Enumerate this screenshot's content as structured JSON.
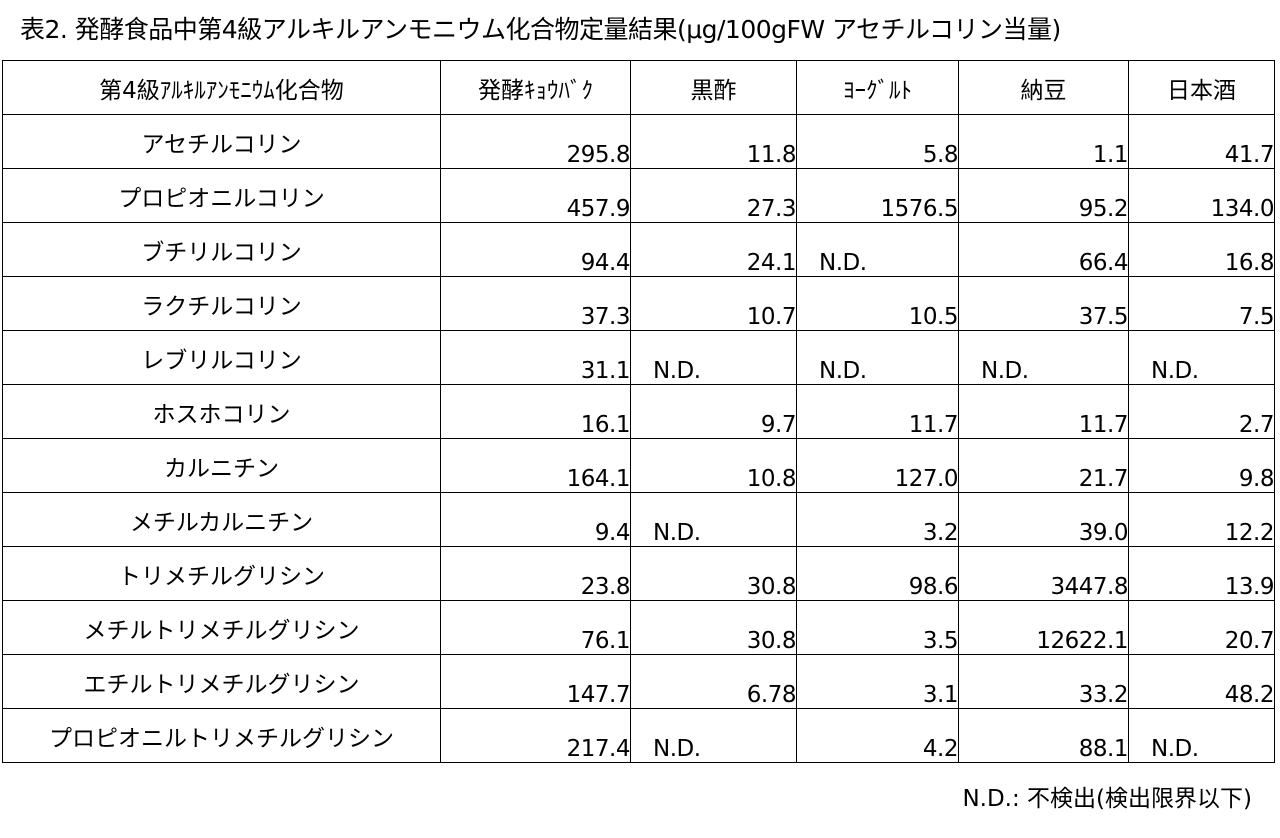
{
  "title": "表2. 発酵食品中第4級アルキルアンモニウム化合物定量結果(μg/100gFW アセチルコリン当量)",
  "table": {
    "headers": [
      "第4級ｱﾙｷﾙｱﾝﾓﾆｳﾑ化合物",
      "発酵ｷｮｳﾊﾞｸ",
      "黒酢",
      "ﾖｰｸﾞﾙﾄ",
      "納豆",
      "日本酒"
    ],
    "rows": [
      [
        "アセチルコリン",
        "295.8",
        "11.8",
        "5.8",
        "1.1",
        "41.7"
      ],
      [
        "プロピオニルコリン",
        "457.9",
        "27.3",
        "1576.5",
        "95.2",
        "134.0"
      ],
      [
        "ブチリルコリン",
        "94.4",
        "24.1",
        "N.D.",
        "66.4",
        "16.8"
      ],
      [
        "ラクチルコリン",
        "37.3",
        "10.7",
        "10.5",
        "37.5",
        "7.5"
      ],
      [
        "レブリルコリン",
        "31.1",
        "N.D.",
        "N.D.",
        "N.D.",
        "N.D."
      ],
      [
        "ホスホコリン",
        "16.1",
        "9.7",
        "11.7",
        "11.7",
        "2.7"
      ],
      [
        "カルニチン",
        "164.1",
        "10.8",
        "127.0",
        "21.7",
        "9.8"
      ],
      [
        "メチルカルニチン",
        "9.4",
        "N.D.",
        "3.2",
        "39.0",
        "12.2"
      ],
      [
        "トリメチルグリシン",
        "23.8",
        "30.8",
        "98.6",
        "3447.8",
        "13.9"
      ],
      [
        "メチルトリメチルグリシン",
        "76.1",
        "30.8",
        "3.5",
        "12622.1",
        "20.7"
      ],
      [
        "エチルトリメチルグリシン",
        "147.7",
        "6.78",
        "3.1",
        "33.2",
        "48.2"
      ],
      [
        "プロピオニルトリメチルグリシン",
        "217.4",
        "N.D.",
        "4.2",
        "88.1",
        "N.D."
      ]
    ]
  },
  "note": "N.D.: 不検出(検出限界以下)"
}
